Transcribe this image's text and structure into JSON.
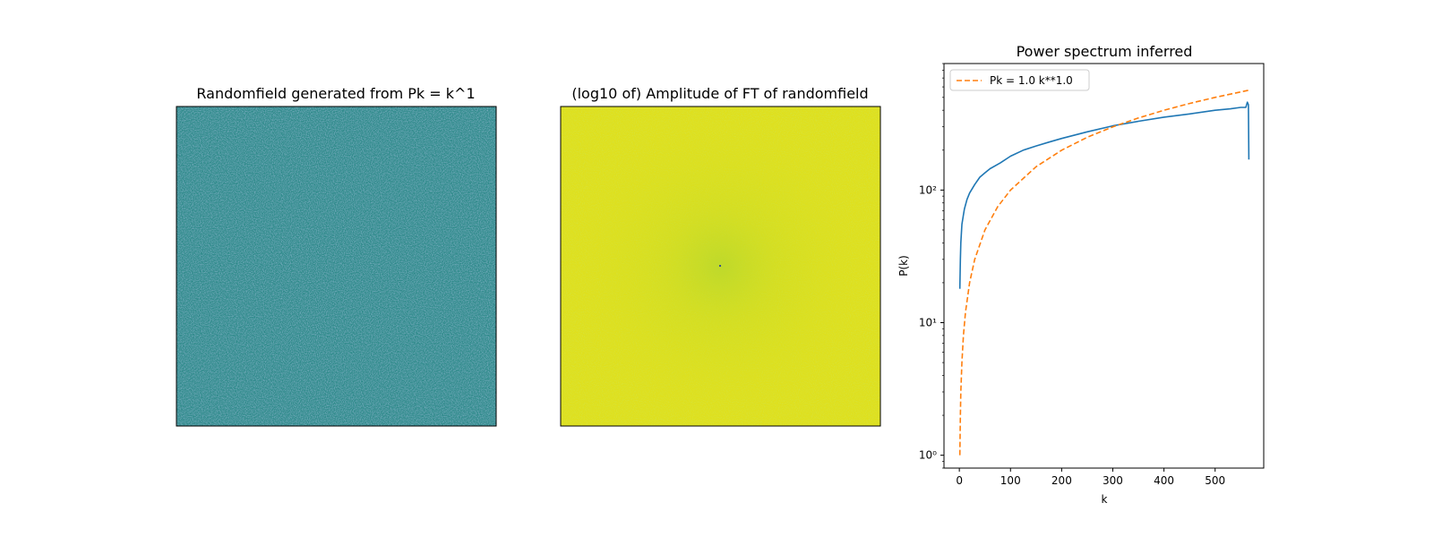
{
  "panels": [
    {
      "title": "Randomfield generated from Pk = k^1",
      "type": "image",
      "colormap": "viridis",
      "base_color": "#2e8a8a"
    },
    {
      "title": "(log10 of) Amplitude of FT of randomfield",
      "type": "image",
      "colormap": "viridis",
      "base_color": "#dfe01d",
      "center_color": "#c9dc25"
    }
  ],
  "chart_data": {
    "type": "line",
    "title": "Power spectrum inferred",
    "xlabel": "k",
    "ylabel": "P(k)",
    "xlim": [
      -30,
      595
    ],
    "ylim": [
      0.8,
      900
    ],
    "yscale": "log",
    "xticks": [
      0,
      100,
      200,
      300,
      400,
      500
    ],
    "xtick_labels": [
      "0",
      "100",
      "200",
      "300",
      "400",
      "500"
    ],
    "yticks": [
      1,
      10,
      100
    ],
    "ytick_labels": [
      "10⁰",
      "10¹",
      "10²"
    ],
    "grid": false,
    "legend": {
      "placement": "upper-left",
      "entries": [
        "Pk = 1.0 k**1.0"
      ]
    },
    "series": [
      {
        "style": "solid",
        "color": "#1f77b4",
        "x": [
          1,
          2,
          3,
          5,
          8,
          10,
          15,
          20,
          30,
          40,
          50,
          60,
          80,
          100,
          125,
          150,
          175,
          200,
          250,
          300,
          350,
          400,
          450,
          500,
          530,
          550,
          560,
          563,
          565,
          566
        ],
        "y": [
          18,
          30,
          40,
          55,
          65,
          72,
          85,
          95,
          110,
          125,
          135,
          145,
          160,
          180,
          200,
          215,
          230,
          245,
          275,
          305,
          330,
          355,
          375,
          400,
          410,
          420,
          420,
          460,
          440,
          170
        ]
      },
      {
        "name": "Pk = 1.0 k**1.0",
        "style": "dashed",
        "color": "#ff7f0e",
        "x": [
          1,
          2,
          3,
          5,
          8,
          12,
          20,
          30,
          50,
          75,
          100,
          150,
          200,
          250,
          300,
          350,
          400,
          450,
          500,
          550,
          566
        ],
        "y": [
          1,
          2,
          3,
          5,
          8,
          12,
          20,
          30,
          50,
          75,
          100,
          150,
          200,
          250,
          300,
          350,
          400,
          450,
          500,
          550,
          566
        ]
      }
    ]
  }
}
